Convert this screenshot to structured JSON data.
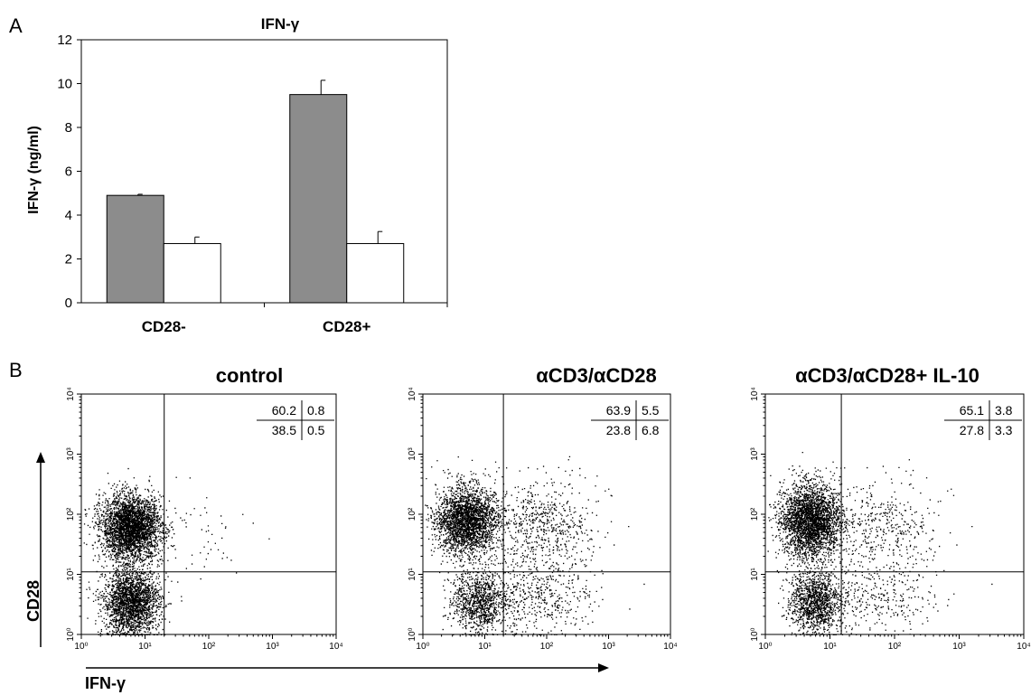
{
  "panelA": {
    "letter": "A",
    "chart_data": {
      "type": "bar",
      "title": "IFN-γ",
      "ylabel": "IFN-γ (ng/ml)",
      "xlabel": "",
      "categories": [
        "CD28-",
        "CD28+"
      ],
      "ylim": [
        0,
        12
      ],
      "yticks": [
        0,
        2,
        4,
        6,
        8,
        10,
        12
      ],
      "grid": false,
      "legend": "none",
      "series": [
        {
          "values": [
            4.9,
            9.5
          ],
          "errors": [
            0.05,
            0.65
          ],
          "color": "#8c8c8c"
        },
        {
          "values": [
            2.7,
            2.7
          ],
          "errors": [
            0.3,
            0.55
          ],
          "color": "#ffffff"
        }
      ]
    }
  },
  "panelB": {
    "letter": "B",
    "ylabel": "CD28",
    "xlabel": "IFN-γ",
    "chart_data": [
      {
        "type": "scatter",
        "title": "control",
        "x_scale": "log",
        "y_scale": "log",
        "xlim": [
          1,
          10000
        ],
        "ylim": [
          1,
          10000
        ],
        "xgate": 20,
        "ygate": 11,
        "quadrants": {
          "upper_left": "60.2",
          "upper_right": "0.8",
          "lower_left": "38.5",
          "lower_right": "0.5"
        },
        "clusters": [
          {
            "x": 6,
            "y": 60,
            "sx": 0.24,
            "sy": 0.26,
            "n": 3200
          },
          {
            "x": 6,
            "y": 3.5,
            "sx": 0.22,
            "sy": 0.28,
            "n": 2300
          },
          {
            "x": 60,
            "y": 40,
            "sx": 0.45,
            "sy": 0.45,
            "n": 50
          }
        ]
      },
      {
        "type": "scatter",
        "title": "αCD3/αCD28",
        "x_scale": "log",
        "y_scale": "log",
        "xlim": [
          1,
          10000
        ],
        "ylim": [
          1,
          10000
        ],
        "xgate": 20,
        "ygate": 11,
        "quadrants": {
          "upper_left": "63.9",
          "upper_right": "5.5",
          "lower_left": "23.8",
          "lower_right": "6.8"
        },
        "clusters": [
          {
            "x": 5,
            "y": 80,
            "sx": 0.24,
            "sy": 0.28,
            "n": 2600
          },
          {
            "x": 8,
            "y": 3.5,
            "sx": 0.22,
            "sy": 0.25,
            "n": 1000
          },
          {
            "x": 80,
            "y": 60,
            "sx": 0.45,
            "sy": 0.4,
            "n": 700
          },
          {
            "x": 70,
            "y": 4,
            "sx": 0.45,
            "sy": 0.3,
            "n": 450
          }
        ]
      },
      {
        "type": "scatter",
        "title": "αCD3/αCD28+ IL-10",
        "x_scale": "log",
        "y_scale": "log",
        "xlim": [
          1,
          10000
        ],
        "ylim": [
          1,
          10000
        ],
        "xgate": 15,
        "ygate": 11,
        "quadrants": {
          "upper_left": "65.1",
          "upper_right": "3.8",
          "lower_left": "27.8",
          "lower_right": "3.3"
        },
        "clusters": [
          {
            "x": 5,
            "y": 80,
            "sx": 0.23,
            "sy": 0.3,
            "n": 2900
          },
          {
            "x": 6,
            "y": 3.5,
            "sx": 0.2,
            "sy": 0.25,
            "n": 1300
          },
          {
            "x": 60,
            "y": 60,
            "sx": 0.45,
            "sy": 0.4,
            "n": 450
          },
          {
            "x": 60,
            "y": 4,
            "sx": 0.45,
            "sy": 0.3,
            "n": 300
          }
        ]
      }
    ]
  }
}
